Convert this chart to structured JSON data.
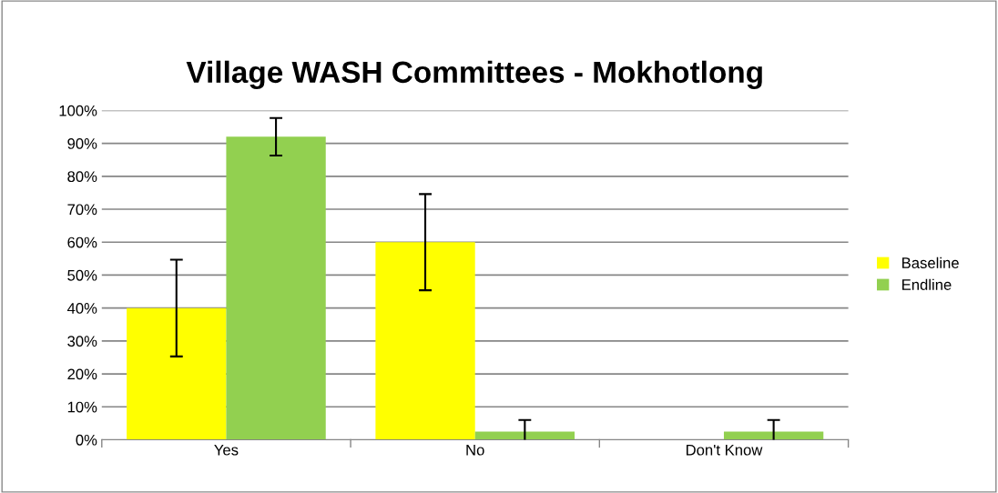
{
  "chart_data": {
    "type": "bar",
    "title": "Village WASH Committees - Mokhotlong",
    "categories": [
      "Yes",
      "No",
      "Don't Know"
    ],
    "series": [
      {
        "name": "Baseline",
        "color": "#ffff00",
        "values": [
          40,
          60,
          0
        ],
        "errors": [
          14.7,
          14.6,
          null
        ]
      },
      {
        "name": "Endline",
        "color": "#92d050",
        "values": [
          92,
          2.5,
          2.5
        ],
        "errors": [
          5.7,
          3.5,
          3.5
        ]
      }
    ],
    "ylim": [
      0,
      100
    ],
    "yticks": [
      {
        "value": 0,
        "label": "0%"
      },
      {
        "value": 10,
        "label": "10%"
      },
      {
        "value": 20,
        "label": "20%"
      },
      {
        "value": 30,
        "label": "30%"
      },
      {
        "value": 40,
        "label": "40%"
      },
      {
        "value": 50,
        "label": "50%"
      },
      {
        "value": 60,
        "label": "60%"
      },
      {
        "value": 70,
        "label": "70%"
      },
      {
        "value": 80,
        "label": "80%"
      },
      {
        "value": 90,
        "label": "90%"
      },
      {
        "value": 100,
        "label": "100%"
      }
    ],
    "grid": "y",
    "legend": "right"
  }
}
